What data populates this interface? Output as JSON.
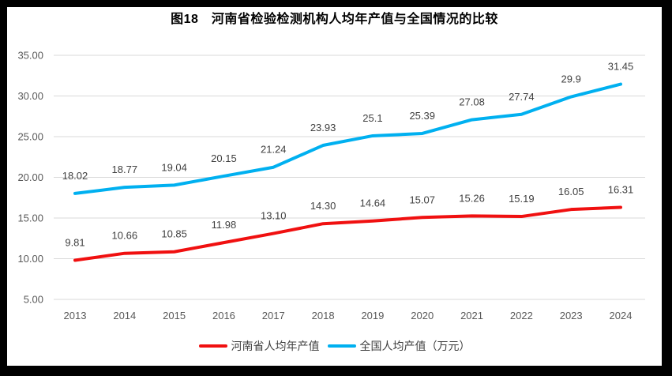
{
  "chart_data": {
    "type": "line",
    "title": "图18　河南省检验检测机构人均年产值与全国情况的比较",
    "categories": [
      "2013",
      "2014",
      "2015",
      "2016",
      "2017",
      "2018",
      "2019",
      "2020",
      "2021",
      "2022",
      "2023",
      "2024"
    ],
    "series": [
      {
        "name": "河南省人均年产值",
        "color": "#F01010",
        "values": [
          9.81,
          10.66,
          10.85,
          11.98,
          13.1,
          14.3,
          14.64,
          15.07,
          15.26,
          15.19,
          16.05,
          16.31
        ],
        "labels": [
          "9.81",
          "10.66",
          "10.85",
          "11.98",
          "13.10",
          "14.30",
          "14.64",
          "15.07",
          "15.26",
          "15.19",
          "16.05",
          "16.31"
        ]
      },
      {
        "name": "全国人均产值（万元）",
        "color": "#00B0F0",
        "values": [
          18.02,
          18.77,
          19.04,
          20.15,
          21.24,
          23.93,
          25.1,
          25.39,
          27.08,
          27.74,
          29.9,
          31.45
        ],
        "labels": [
          "18.02",
          "18.77",
          "19.04",
          "20.15",
          "21.24",
          "23.93",
          "25.1",
          "25.39",
          "27.08",
          "27.74",
          "29.9",
          "31.45"
        ]
      }
    ],
    "ylim": [
      5,
      35
    ],
    "ytick_step": 5,
    "ytick_labels": [
      "5.00",
      "10.00",
      "15.00",
      "20.00",
      "25.00",
      "30.00",
      "35.00"
    ],
    "grid": true,
    "legend_position": "bottom",
    "colors": {
      "grid": "#D9D9D9",
      "axis_text": "#595959",
      "data_label": "#404040",
      "frame": "#000000",
      "background": "#FFFFFF"
    }
  }
}
